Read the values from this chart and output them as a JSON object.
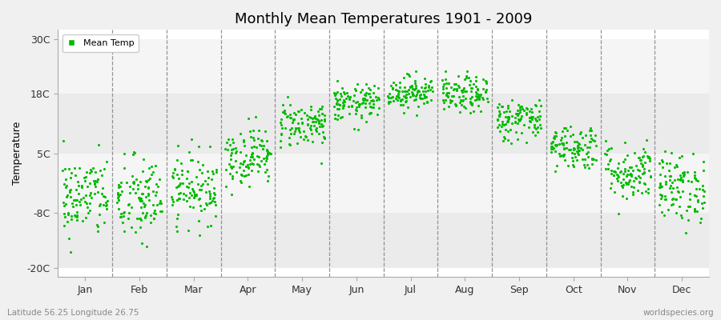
{
  "title": "Monthly Mean Temperatures 1901 - 2009",
  "ylabel": "Temperature",
  "xlabel": "",
  "footer_left": "Latitude 56.25 Longitude 26.75",
  "footer_right": "worldspecies.org",
  "legend_label": "Mean Temp",
  "dot_color": "#00bb00",
  "fig_bg": "#f0f0f0",
  "plot_bg": "#ffffff",
  "hband_colors": [
    "#ebebeb",
    "#f5f5f5"
  ],
  "yticks": [
    -20,
    -8,
    5,
    18,
    30
  ],
  "ytick_labels": [
    "-20C",
    "-8C",
    "5C",
    "18C",
    "30C"
  ],
  "ylim": [
    -22,
    32
  ],
  "months": [
    "Jan",
    "Feb",
    "Mar",
    "Apr",
    "May",
    "Jun",
    "Jul",
    "Aug",
    "Sep",
    "Oct",
    "Nov",
    "Dec"
  ],
  "month_means": [
    -4.5,
    -5.2,
    -2.5,
    4.5,
    11.5,
    16.0,
    18.5,
    17.8,
    12.5,
    6.5,
    1.0,
    -2.5
  ],
  "month_stds": [
    4.5,
    4.8,
    3.8,
    3.2,
    2.5,
    2.0,
    1.8,
    2.0,
    2.3,
    2.5,
    3.2,
    3.8
  ],
  "n_years": 109,
  "seed": 42
}
